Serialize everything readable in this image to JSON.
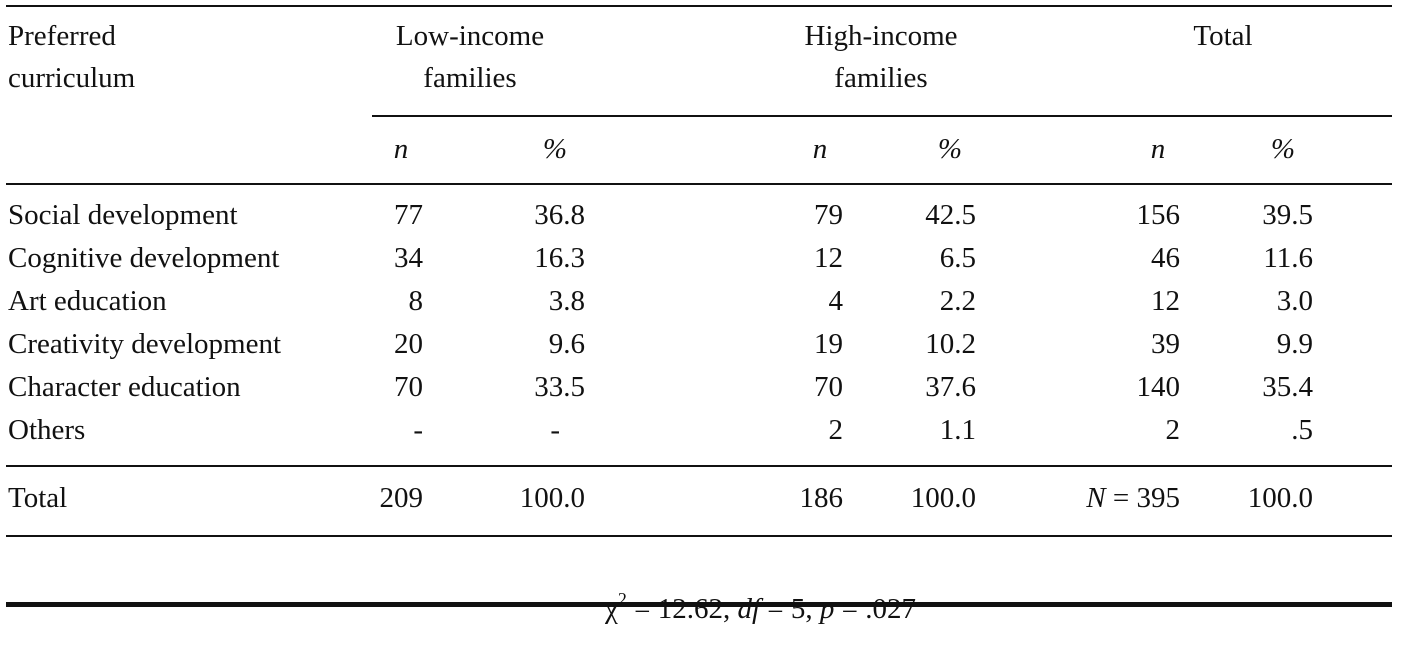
{
  "header": {
    "row_label_line1": "Preferred",
    "row_label_line2": "curriculum",
    "groups": [
      {
        "line1": "Low-income",
        "line2": "families"
      },
      {
        "line1": "High-income",
        "line2": "families"
      },
      {
        "line1": "Total",
        "line2": ""
      }
    ],
    "n_label": "n",
    "pct_label": "%"
  },
  "rows": [
    {
      "label": "Social development",
      "low_n": "77",
      "low_pct": "36.8",
      "high_n": "79",
      "high_pct": "42.5",
      "total_n": "156",
      "total_pct": "39.5"
    },
    {
      "label": "Cognitive development",
      "low_n": "34",
      "low_pct": "16.3",
      "high_n": "12",
      "high_pct": "6.5",
      "total_n": "46",
      "total_pct": "11.6"
    },
    {
      "label": "Art education",
      "low_n": "8",
      "low_pct": "3.8",
      "high_n": "4",
      "high_pct": "2.2",
      "total_n": "12",
      "total_pct": "3.0"
    },
    {
      "label": "Creativity development",
      "low_n": "20",
      "low_pct": "9.6",
      "high_n": "19",
      "high_pct": "10.2",
      "total_n": "39",
      "total_pct": "9.9"
    },
    {
      "label": "Character education",
      "low_n": "70",
      "low_pct": "33.5",
      "high_n": "70",
      "high_pct": "37.6",
      "total_n": "140",
      "total_pct": "35.4"
    },
    {
      "label": "Others",
      "low_n": "-",
      "low_pct": "-",
      "high_n": "2",
      "high_pct": "1.1",
      "total_n": "2",
      "total_pct": ".5"
    }
  ],
  "total_row": {
    "label": "Total",
    "low_n": "209",
    "low_pct": "100.0",
    "high_n": "186",
    "high_pct": "100.0",
    "total_n_prefix": "N",
    "total_n_value": " = 395",
    "total_pct": "100.0"
  },
  "footer": {
    "chi": "χ",
    "chi_exp": "2",
    "chi_value": " = 12.62, ",
    "df_label": "df",
    "df_value": " = 5, ",
    "p_label": "p",
    "p_value": " = .027"
  }
}
